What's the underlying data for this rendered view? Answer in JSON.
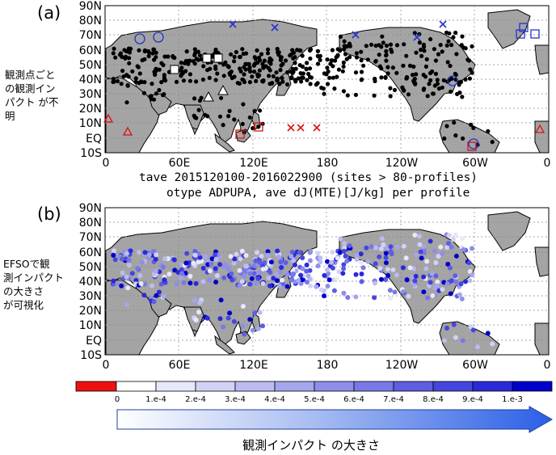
{
  "panel_a": {
    "label": "(a)",
    "lat_labels": [
      "90N",
      "80N",
      "70N",
      "60N",
      "50N",
      "40N",
      "30N",
      "20N",
      "10N",
      "EQ",
      "10S"
    ],
    "lon_labels": [
      "0",
      "60E",
      "120E",
      "180",
      "120W",
      "60W",
      "0"
    ],
    "caption_line1": "tave 2015120100-2016022900 (sites > 80-profiles)",
    "caption_line2": "otype ADPUPA, ave dJ(MTE)[J/kg] per profile"
  },
  "panel_b": {
    "label": "(b)",
    "lat_labels": [
      "90N",
      "80N",
      "70N",
      "60N",
      "50N",
      "40N",
      "30N",
      "20N",
      "10N",
      "EQ",
      "10S"
    ],
    "lon_labels": [
      "0",
      "60E",
      "120E",
      "180",
      "120W",
      "60W",
      "0"
    ]
  },
  "notes": {
    "a": [
      "観測点ごと",
      "の観測イン",
      "パクト が不",
      "明"
    ],
    "b": [
      "EFSOで観",
      "測インパクト",
      "の大きさ",
      "が可視化"
    ]
  },
  "colorbar": {
    "labels": [
      "0",
      "1.e-4",
      "2.e-4",
      "3.e-4",
      "4.e-4",
      "5.e-4",
      "6.e-4",
      "7.e-4",
      "8.e-4",
      "9.e-4",
      "1.e-3"
    ],
    "colors": [
      "#ee1111",
      "#ffffff",
      "#e8e8fb",
      "#d2d2f6",
      "#bcbcf2",
      "#a6a6ee",
      "#8e8eea",
      "#7878e6",
      "#5e5ee2",
      "#4646de",
      "#2a2ada",
      "#0000cc"
    ]
  },
  "arrow_label": "観測インパクト の大きさ"
}
